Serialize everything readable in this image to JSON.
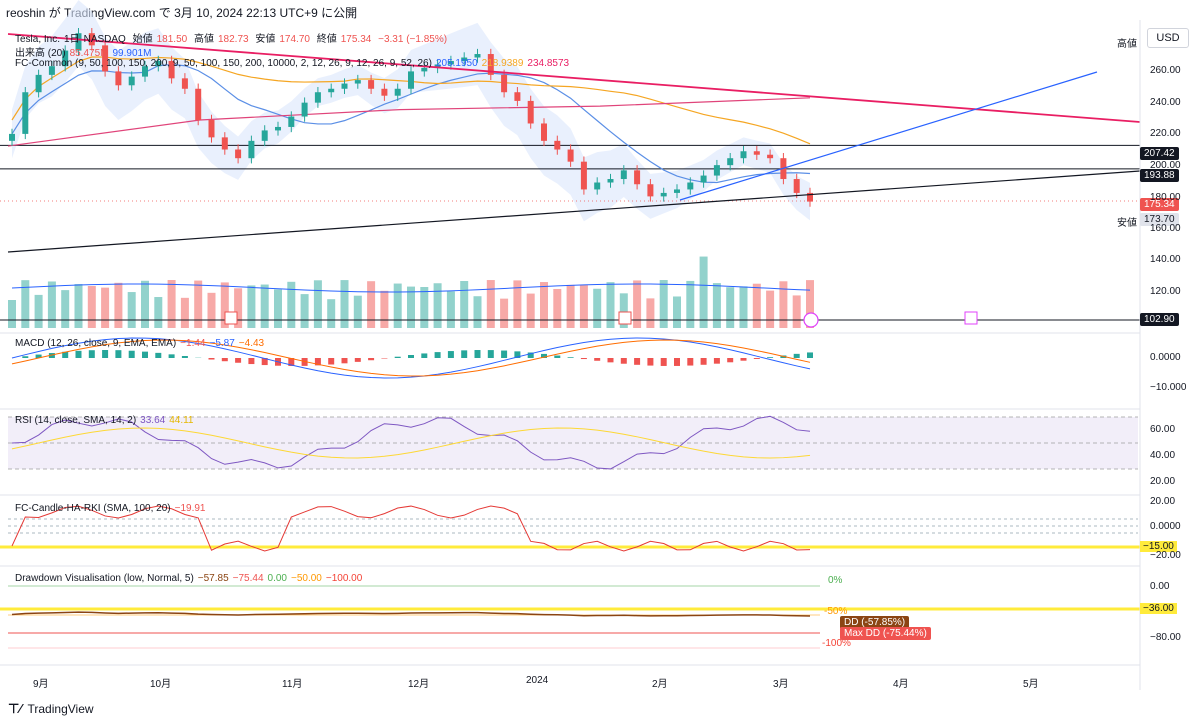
{
  "header": {
    "text": "reoshin が TradingView.com で 3月 10, 2024 22:13 UTC+9 に公開"
  },
  "footer": {
    "brand": "TradingView"
  },
  "currency": "USD",
  "symbol_line": {
    "name": "Tesla, Inc.",
    "tf": "1日",
    "exchange": "NASDAQ",
    "open_label": "始値",
    "open": "181.50",
    "high_label": "高値",
    "high": "182.73",
    "low_label": "安値",
    "low": "174.70",
    "close_label": "終値",
    "close": "175.34",
    "change": "−3.31 (−1.85%)"
  },
  "volume_line": {
    "label": "出来高 (20)",
    "v1": "85.475M",
    "v2": "99.901M"
  },
  "fc_common": {
    "label": "FC-Common (9, 50, 100, 150, 200, 9, 50, 100, 150, 200, 10000, 2, 12, 26, 9, 12, 26, 9, 52, 26)",
    "v1": "205.1950",
    "v2": "218.9389",
    "v3": "234.8573"
  },
  "macd_label": {
    "text": "MACD (12, 26, close, 9, EMA, EMA)",
    "v1": "−1.44",
    "v2": "−5.87",
    "v3": "−4.43"
  },
  "rsi_label": {
    "text": "RSI (14, close, SMA, 14, 2)",
    "v1": "33.64",
    "v2": "44.11"
  },
  "fc_candle_label": {
    "text": "FC-Candle-HA-RKI (SMA, 100, 20)",
    "v1": "−19.91"
  },
  "dd_label": {
    "text": "Drawdown Visualisation (low, Normal, 5)",
    "v1": "−57.85",
    "v2": "−75.44",
    "v3": "0.00",
    "v4": "−50.00",
    "v5": "−100.00"
  },
  "price_axis": [
    "260.00",
    "240.00",
    "220.00",
    "200.00",
    "180.00",
    "160.00",
    "140.00",
    "120.00"
  ],
  "price_badges": {
    "high_tag": "高値",
    "r1": "207.42",
    "r2": "193.88",
    "last": "175.34",
    "low_tag": "安値",
    "low": "173.70",
    "vol_line": "102.90"
  },
  "macd_axis": [
    "0.0000",
    "−10.000"
  ],
  "rsi_axis": [
    "60.00",
    "40.00",
    "20.00"
  ],
  "fc_axis": [
    "20.00",
    "0.0000",
    "−15.00",
    "−20.00"
  ],
  "dd_axis": [
    "0.00",
    "−36.00",
    "−80.00"
  ],
  "dd_texts": {
    "zero": "0%",
    "fifty": "-50%",
    "hundred": "-100%",
    "dd_badge": "DD (-57.85%)",
    "max_dd_badge": "Max DD (-75.44%)"
  },
  "months": [
    "9月",
    "10月",
    "11月",
    "12月",
    "2024",
    "2月",
    "3月",
    "4月",
    "5月"
  ],
  "colors": {
    "up": "#26a69a",
    "down": "#ef5350",
    "trend_red": "#e91e63",
    "trend_blue": "#2962ff",
    "ma_blue": "#5b8fe6",
    "ma_orange": "#f5a623",
    "ma_red": "#e0447a",
    "yellow": "#ffeb3b"
  },
  "chart_data": {
    "type": "candlestick",
    "symbol": "Tesla, Inc. NASDAQ 1D",
    "close_series_start_to_end": [
      214,
      238,
      248,
      253,
      262,
      272,
      265,
      250,
      242,
      247,
      253,
      256,
      246,
      240,
      222,
      212,
      205,
      200,
      210,
      216,
      218,
      224,
      232,
      238,
      240,
      243,
      245,
      240,
      236,
      240,
      250,
      252,
      254,
      256,
      258,
      260,
      248,
      238,
      233,
      220,
      210,
      205,
      198,
      182,
      186,
      188,
      193,
      185,
      178,
      180,
      182,
      186,
      190,
      196,
      200,
      204,
      202,
      200,
      188,
      180,
      175
    ],
    "levels": [
      207.42,
      193.88,
      175.34,
      173.7
    ],
    "ma_values_last": [
      205.195,
      218.9389,
      234.8573
    ],
    "ylim": [
      150,
      275
    ]
  }
}
